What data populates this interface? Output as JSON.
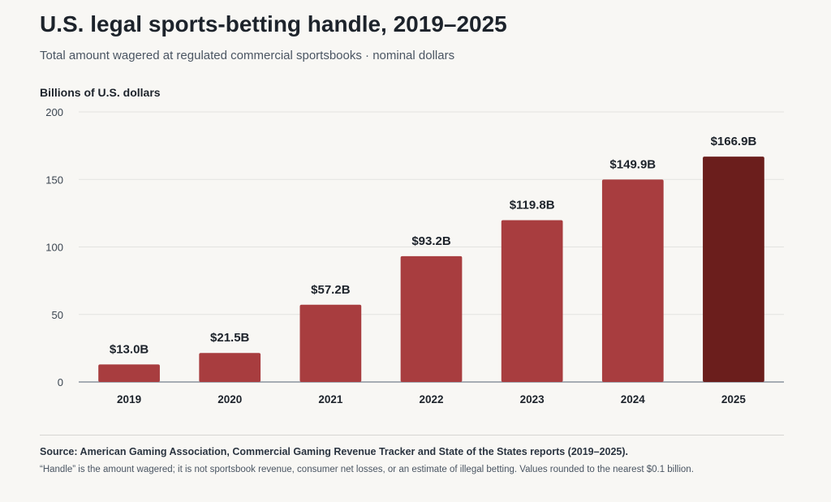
{
  "header": {
    "title": "U.S. legal sports-betting handle, 2019–2025",
    "subtitle": "Total amount wagered at regulated commercial sportsbooks · nominal dollars"
  },
  "chart_data": {
    "type": "bar",
    "ylabel": "Billions of U.S. dollars",
    "categories": [
      "2019",
      "2020",
      "2021",
      "2022",
      "2023",
      "2024",
      "2025"
    ],
    "values": [
      13.0,
      21.5,
      57.2,
      93.2,
      119.8,
      149.9,
      166.9
    ],
    "data_labels": [
      "$13.0B",
      "$21.5B",
      "$57.2B",
      "$93.2B",
      "$119.8B",
      "$149.9B",
      "$166.9B"
    ],
    "ylim": [
      0,
      200
    ],
    "yticks": [
      0,
      50,
      100,
      150,
      200
    ],
    "grid": true,
    "colors": {
      "bar": "#a83d3f",
      "highlight": "#6b1e1c",
      "grid": "#e3e3e0",
      "axis": "#8a949e"
    },
    "highlight_index": 6
  },
  "footer": {
    "source": "Source: American Gaming Association, Commercial Gaming Revenue Tracker and State of the States reports (2019–2025).",
    "note": "“Handle” is the amount wagered; it is not sportsbook revenue, consumer net losses, or an estimate of illegal betting. Values rounded to the nearest $0.1 billion."
  }
}
